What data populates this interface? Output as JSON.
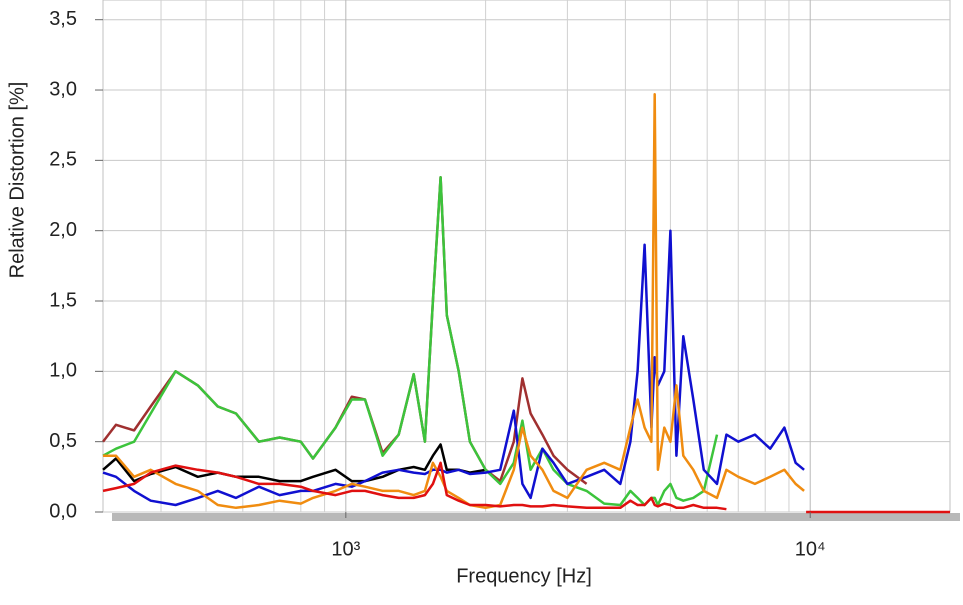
{
  "chart_data": {
    "type": "line",
    "xlabel": "Frequency  [Hz]",
    "ylabel": "Relative Distortion  [%]",
    "xscale": "log",
    "grid": true,
    "xlim": [
      300,
      20000
    ],
    "ylim": [
      0,
      3.64
    ],
    "xticks": [
      {
        "value": 1000,
        "label": "10³"
      },
      {
        "value": 10000,
        "label": "10⁴"
      }
    ],
    "xminorticks": [
      400,
      500,
      600,
      700,
      800,
      900,
      2000,
      3000,
      4000,
      5000,
      6000,
      7000,
      8000,
      9000
    ],
    "yticks": [
      {
        "value": 0,
        "label": "0,0"
      },
      {
        "value": 0.5,
        "label": "0,5"
      },
      {
        "value": 1,
        "label": "1,0"
      },
      {
        "value": 1.5,
        "label": "1,5"
      },
      {
        "value": 2,
        "label": "2,0"
      },
      {
        "value": 2.5,
        "label": "2,5"
      },
      {
        "value": 3,
        "label": "3,0"
      },
      {
        "value": 3.5,
        "label": "3,5"
      }
    ],
    "x": [
      300,
      320,
      350,
      380,
      430,
      480,
      530,
      580,
      650,
      720,
      800,
      850,
      950,
      1030,
      1100,
      1200,
      1300,
      1400,
      1480,
      1540,
      1600,
      1650,
      1750,
      1850,
      2000,
      2150,
      2300,
      2400,
      2500,
      2650,
      2800,
      3000,
      3300,
      3600,
      3900,
      4100,
      4250,
      4400,
      4550,
      4625,
      4700,
      4850,
      5000,
      5150,
      5330,
      5600,
      5900,
      6300,
      6600,
      7000,
      7600,
      8200,
      8800,
      9300,
      9700,
      9800,
      20000
    ],
    "series": [
      {
        "color": "#000000",
        "values": [
          0.3,
          0.38,
          0.22,
          0.27,
          0.32,
          0.25,
          0.28,
          0.25,
          0.25,
          0.22,
          0.22,
          0.25,
          0.3,
          0.22,
          0.22,
          0.25,
          0.3,
          0.32,
          0.3,
          0.4,
          0.48,
          0.3,
          0.3,
          0.28,
          0.3,
          null,
          null,
          null,
          null,
          null,
          null,
          null,
          null,
          null,
          null,
          null,
          null,
          null,
          null,
          null,
          null,
          null,
          null,
          null,
          null,
          null,
          null,
          null,
          null,
          null,
          null,
          null,
          null,
          null,
          null,
          null,
          null
        ]
      },
      {
        "color": "#a03030",
        "values": [
          0.5,
          0.62,
          0.58,
          0.75,
          1.0,
          0.9,
          0.75,
          0.7,
          0.5,
          0.53,
          0.5,
          0.38,
          0.6,
          0.82,
          0.8,
          0.42,
          0.55,
          0.98,
          0.5,
          1.5,
          2.38,
          1.4,
          1.0,
          0.5,
          0.3,
          0.22,
          0.5,
          0.95,
          0.7,
          0.55,
          0.4,
          0.3,
          0.2,
          null,
          null,
          null,
          null,
          null,
          null,
          null,
          null,
          null,
          null,
          null,
          null,
          null,
          null,
          null,
          null,
          null,
          null,
          null,
          null,
          null,
          null,
          null,
          null
        ]
      },
      {
        "color": "#3cc43c",
        "values": [
          0.4,
          0.45,
          0.5,
          0.7,
          1.0,
          0.9,
          0.75,
          0.7,
          0.5,
          0.53,
          0.5,
          0.38,
          0.6,
          0.8,
          0.8,
          0.4,
          0.55,
          0.98,
          0.5,
          1.5,
          2.38,
          1.4,
          1.0,
          0.5,
          0.3,
          0.2,
          0.35,
          0.65,
          0.3,
          0.45,
          0.3,
          0.2,
          0.15,
          0.06,
          0.05,
          0.15,
          0.1,
          0.05,
          0.1,
          0.1,
          0.05,
          0.15,
          0.2,
          0.1,
          0.08,
          0.1,
          0.15,
          0.55,
          null,
          null,
          null,
          null,
          null,
          null,
          null,
          null,
          null
        ]
      },
      {
        "color": "#1010d0",
        "values": [
          0.28,
          0.25,
          0.15,
          0.08,
          0.05,
          0.1,
          0.15,
          0.1,
          0.18,
          0.12,
          0.15,
          0.15,
          0.2,
          0.18,
          0.22,
          0.28,
          0.3,
          0.28,
          0.27,
          0.3,
          0.3,
          0.28,
          0.3,
          0.27,
          0.28,
          0.3,
          0.72,
          0.2,
          0.1,
          0.45,
          0.35,
          0.2,
          0.25,
          0.3,
          0.2,
          0.5,
          1.0,
          1.9,
          0.6,
          1.1,
          0.9,
          1.0,
          2.0,
          0.4,
          1.25,
          0.8,
          0.3,
          0.2,
          0.55,
          0.5,
          0.55,
          0.45,
          0.6,
          0.35,
          0.3,
          null,
          null
        ]
      },
      {
        "color": "#f08c10",
        "values": [
          0.4,
          0.4,
          0.25,
          0.3,
          0.2,
          0.15,
          0.05,
          0.03,
          0.05,
          0.08,
          0.06,
          0.1,
          0.15,
          0.2,
          0.18,
          0.15,
          0.15,
          0.12,
          0.15,
          0.35,
          0.25,
          0.15,
          0.1,
          0.05,
          0.03,
          0.05,
          0.3,
          0.6,
          0.4,
          0.3,
          0.15,
          0.1,
          0.3,
          0.35,
          0.3,
          0.6,
          0.8,
          0.6,
          0.5,
          2.97,
          0.3,
          0.6,
          0.5,
          0.9,
          0.4,
          0.3,
          0.15,
          0.1,
          0.3,
          0.25,
          0.2,
          0.25,
          0.3,
          0.2,
          0.15,
          null,
          null
        ]
      },
      {
        "color": "#e01010",
        "values": [
          0.15,
          0.17,
          0.2,
          0.28,
          0.33,
          0.3,
          0.28,
          0.25,
          0.2,
          0.2,
          0.18,
          0.15,
          0.12,
          0.15,
          0.15,
          0.12,
          0.1,
          0.1,
          0.12,
          0.2,
          0.35,
          0.12,
          0.08,
          0.05,
          0.05,
          0.04,
          0.05,
          0.05,
          0.04,
          0.04,
          0.05,
          0.04,
          0.03,
          0.03,
          0.03,
          0.08,
          0.05,
          0.05,
          0.1,
          0.05,
          0.04,
          0.06,
          0.05,
          0.03,
          0.03,
          0.05,
          0.03,
          0.03,
          0.02,
          null,
          null,
          null,
          null,
          null,
          null,
          0,
          0
        ]
      }
    ]
  }
}
